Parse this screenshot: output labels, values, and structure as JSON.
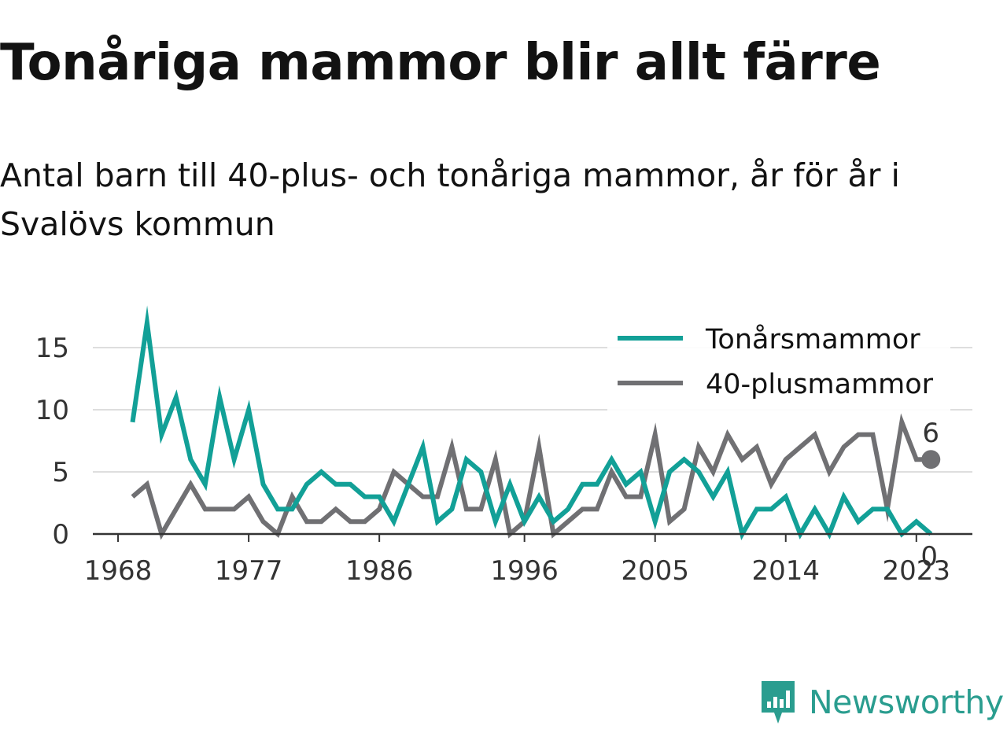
{
  "title": "Tonåriga mammor blir allt färre",
  "subtitle": "Antal barn till 40-plus- och tonåriga mammor, år för år i Svalövs kommun",
  "brand": {
    "name": "Newsworthy",
    "icon": "newsworthy-logo-icon",
    "color": "#2a9d8f"
  },
  "chart_data": {
    "type": "line",
    "x_start": 1969,
    "x_end": 2024,
    "x_ticks": [
      "1968",
      "1977",
      "1986",
      "1996",
      "2005",
      "2014",
      "2023"
    ],
    "y_ticks": [
      "0",
      "5",
      "10",
      "15"
    ],
    "ylim": [
      0,
      17
    ],
    "grid": true,
    "legend": "top-right",
    "series": [
      {
        "name": "Tonårsmammor",
        "color": "#12a097",
        "values": [
          9,
          17,
          8,
          11,
          6,
          4,
          11,
          6,
          10,
          4,
          2,
          2,
          4,
          5,
          4,
          4,
          3,
          3,
          1,
          4,
          7,
          1,
          2,
          6,
          5,
          1,
          4,
          1,
          3,
          1,
          2,
          4,
          4,
          6,
          4,
          5,
          1,
          5,
          6,
          5,
          3,
          5,
          0,
          2,
          2,
          3,
          0,
          2,
          0,
          3,
          1,
          2,
          2,
          0,
          1,
          0
        ],
        "end_label": "0"
      },
      {
        "name": "40-plusmammor",
        "color": "#707073",
        "values": [
          3,
          4,
          0,
          2,
          4,
          2,
          2,
          2,
          3,
          1,
          0,
          3,
          1,
          1,
          2,
          1,
          1,
          2,
          5,
          4,
          3,
          3,
          7,
          2,
          2,
          6,
          0,
          1,
          7,
          0,
          1,
          2,
          2,
          5,
          3,
          3,
          8,
          1,
          2,
          7,
          5,
          8,
          6,
          7,
          4,
          6,
          7,
          8,
          5,
          7,
          8,
          8,
          2,
          9,
          6,
          6
        ],
        "end_label": "6"
      }
    ]
  }
}
